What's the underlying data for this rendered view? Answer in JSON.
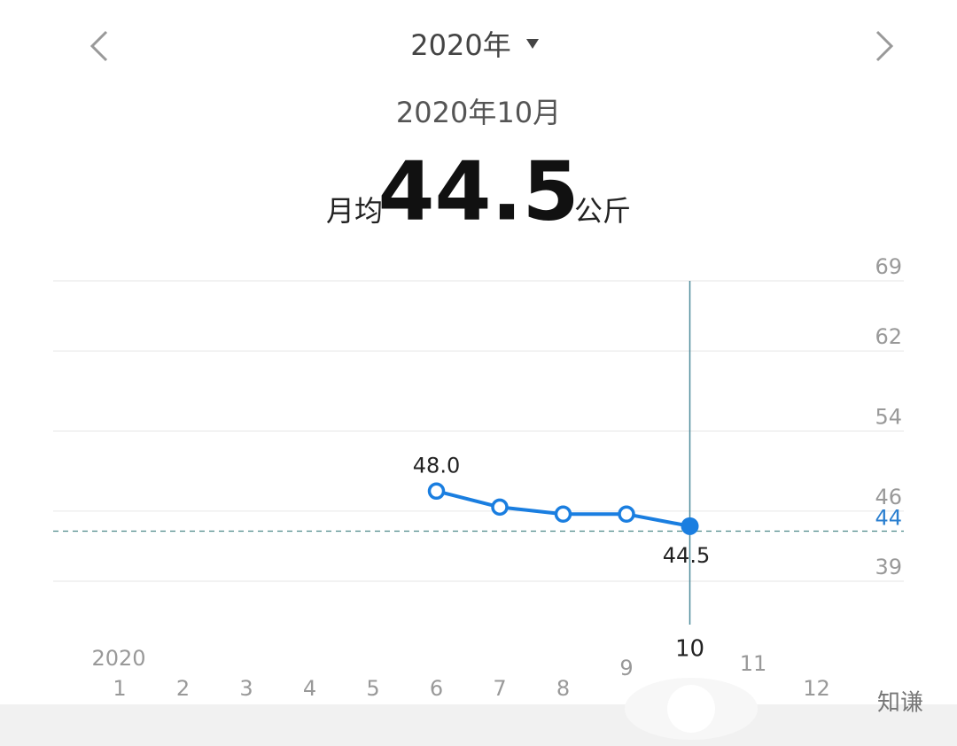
{
  "header": {
    "year": "2020年",
    "period": "2020年10月",
    "avg_label": "月均",
    "avg_value": 44.5,
    "unit": "公斤"
  },
  "watermark": "知谦",
  "chart_data": {
    "type": "line",
    "year_label": "2020",
    "categories": [
      "1",
      "2",
      "3",
      "4",
      "5",
      "6",
      "7",
      "8",
      "9",
      "10",
      "11",
      "12"
    ],
    "series": [
      {
        "color": "#1a7ee0",
        "values": [
          null,
          null,
          null,
          null,
          null,
          48.0,
          46.4,
          45.7,
          45.7,
          44.5,
          null,
          null
        ],
        "value_labels": [
          null,
          null,
          null,
          null,
          null,
          "48.0",
          null,
          null,
          null,
          "44.5",
          null,
          null
        ]
      }
    ],
    "ylim": [
      39,
      69
    ],
    "yticks": [
      39,
      46,
      54,
      62,
      69
    ],
    "grid": true,
    "reference": {
      "value": 44,
      "color": "#2a7fd0"
    }
  }
}
